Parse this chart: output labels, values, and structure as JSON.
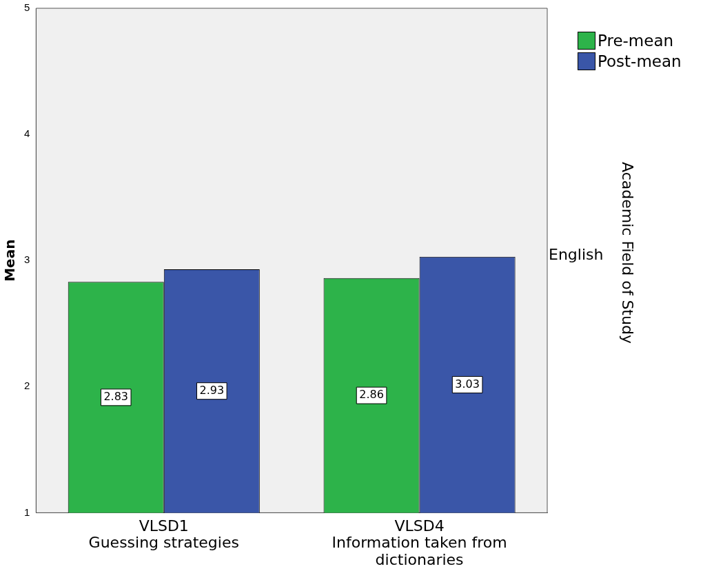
{
  "chart_data": {
    "type": "bar",
    "ylabel": "Mean",
    "categories": [
      "VLSD1\nGuessing strategies",
      "VLSD4\nInformation taken from\ndictionaries"
    ],
    "series": [
      {
        "name": "Pre-mean",
        "color": "#2db34a",
        "values": [
          2.83,
          2.86
        ]
      },
      {
        "name": "Post-mean",
        "color": "#3a56a8",
        "values": [
          2.93,
          3.03
        ]
      }
    ],
    "ylim": [
      1,
      5
    ],
    "yticks": [
      1,
      2,
      3,
      4,
      5
    ],
    "grid": false,
    "legend": "top right",
    "data_labels": true,
    "annotations": [
      "English",
      "Academic Field of Study"
    ]
  }
}
